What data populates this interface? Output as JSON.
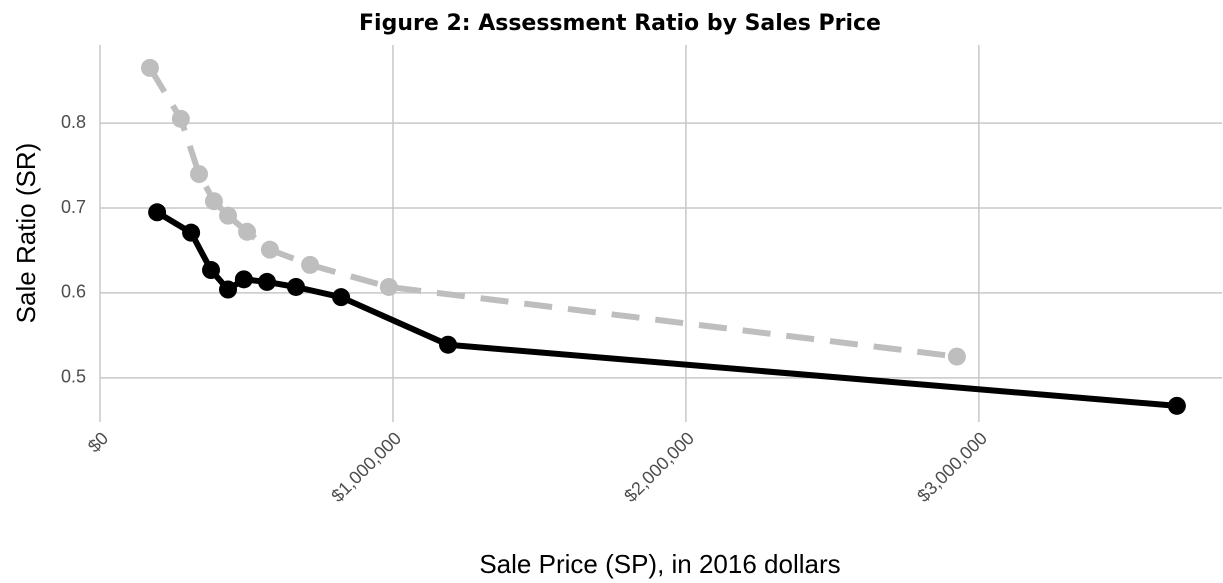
{
  "chart_data": {
    "type": "line",
    "title": "Figure 2: Assessment Ratio by Sales Price",
    "x_label": "Sale Price (SP), in 2016 dollars",
    "y_label": "Sale Ratio (SR)",
    "xlim": [
      0,
      3830000
    ],
    "ylim": [
      0.448,
      0.892
    ],
    "xticks": [
      {
        "value": 0,
        "label": "$0"
      },
      {
        "value": 1000000,
        "label": "$1,000,000"
      },
      {
        "value": 2000000,
        "label": "$2,000,000"
      },
      {
        "value": 3000000,
        "label": "$3,000,000"
      }
    ],
    "yticks": [
      0.5,
      0.6,
      0.7,
      0.8
    ],
    "grid": true,
    "series": [
      {
        "color": "#bebebe",
        "dashed": true,
        "x": [
          170600,
          276000,
          338000,
          389000,
          437000,
          502000,
          580000,
          717000,
          986000,
          2925000
        ],
        "values": [
          0.865,
          0.805,
          0.74,
          0.708,
          0.691,
          0.672,
          0.651,
          0.633,
          0.607,
          0.525
        ]
      },
      {
        "color": "#000000",
        "dashed": false,
        "x": [
          195000,
          311000,
          379000,
          437000,
          491000,
          570000,
          669000,
          823000,
          1188000,
          3676000
        ],
        "values": [
          0.695,
          0.671,
          0.627,
          0.604,
          0.616,
          0.613,
          0.607,
          0.595,
          0.539,
          0.467
        ]
      }
    ]
  }
}
